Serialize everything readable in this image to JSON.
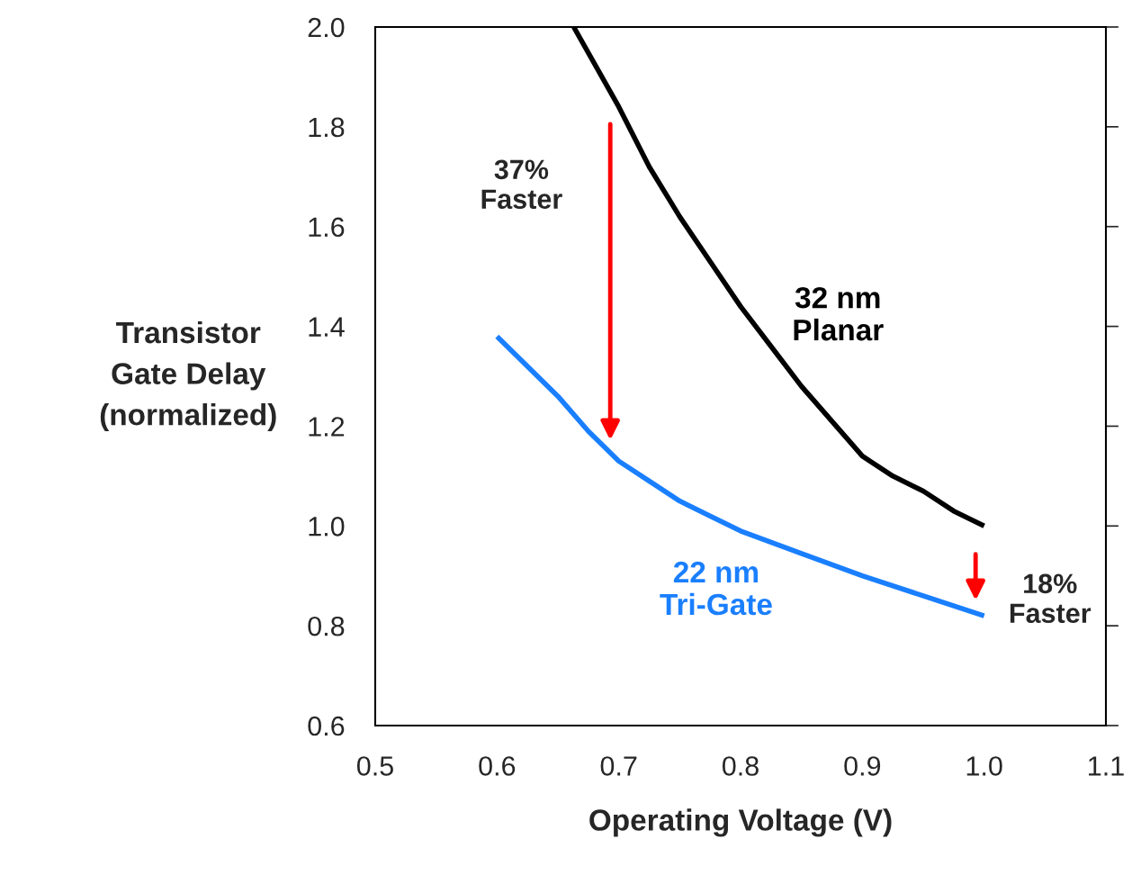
{
  "chart_data": {
    "type": "line",
    "xlabel": "Operating Voltage (V)",
    "ylabel": "Transistor\nGate Delay\n(normalized)",
    "xlim": [
      0.5,
      1.1
    ],
    "xticks": [
      {
        "value": 0.5,
        "label": "0.5"
      },
      {
        "value": 0.6,
        "label": "0.6"
      },
      {
        "value": 0.7,
        "label": "0.7"
      },
      {
        "value": 0.8,
        "label": "0.8"
      },
      {
        "value": 0.9,
        "label": "0.9"
      },
      {
        "value": 1.0,
        "label": "1.0"
      },
      {
        "value": 1.1,
        "label": "1.1"
      }
    ],
    "ylim": [
      0.6,
      2.0
    ],
    "yticks": [
      {
        "value": 0.6,
        "label": "0.6"
      },
      {
        "value": 0.8,
        "label": "0.8"
      },
      {
        "value": 1.0,
        "label": "1.0"
      },
      {
        "value": 1.2,
        "label": "1.2"
      },
      {
        "value": 1.4,
        "label": "1.4"
      },
      {
        "value": 1.6,
        "label": "1.6"
      },
      {
        "value": 1.8,
        "label": "1.8"
      },
      {
        "value": 2.0,
        "label": "2.0"
      }
    ],
    "grid": false,
    "legend": false,
    "series": [
      {
        "name": "32 nm\nPlanar",
        "color": "#000000",
        "x": [
          0.663,
          0.7,
          0.725,
          0.75,
          0.775,
          0.8,
          0.825,
          0.85,
          0.875,
          0.9,
          0.925,
          0.95,
          0.975,
          1.0
        ],
        "values": [
          2.0,
          1.84,
          1.72,
          1.62,
          1.53,
          1.44,
          1.36,
          1.28,
          1.21,
          1.14,
          1.1,
          1.07,
          1.03,
          1.0
        ]
      },
      {
        "name": "22 nm\nTri-Gate",
        "color": "#1a7fff",
        "x": [
          0.6,
          0.625,
          0.65,
          0.675,
          0.7,
          0.725,
          0.75,
          0.775,
          0.8,
          0.85,
          0.9,
          0.95,
          1.0
        ],
        "values": [
          1.38,
          1.32,
          1.26,
          1.19,
          1.13,
          1.09,
          1.05,
          1.02,
          0.99,
          0.945,
          0.9,
          0.86,
          0.82
        ]
      }
    ],
    "annotations": [
      "37%\nFaster",
      "18%\nFaster"
    ]
  }
}
